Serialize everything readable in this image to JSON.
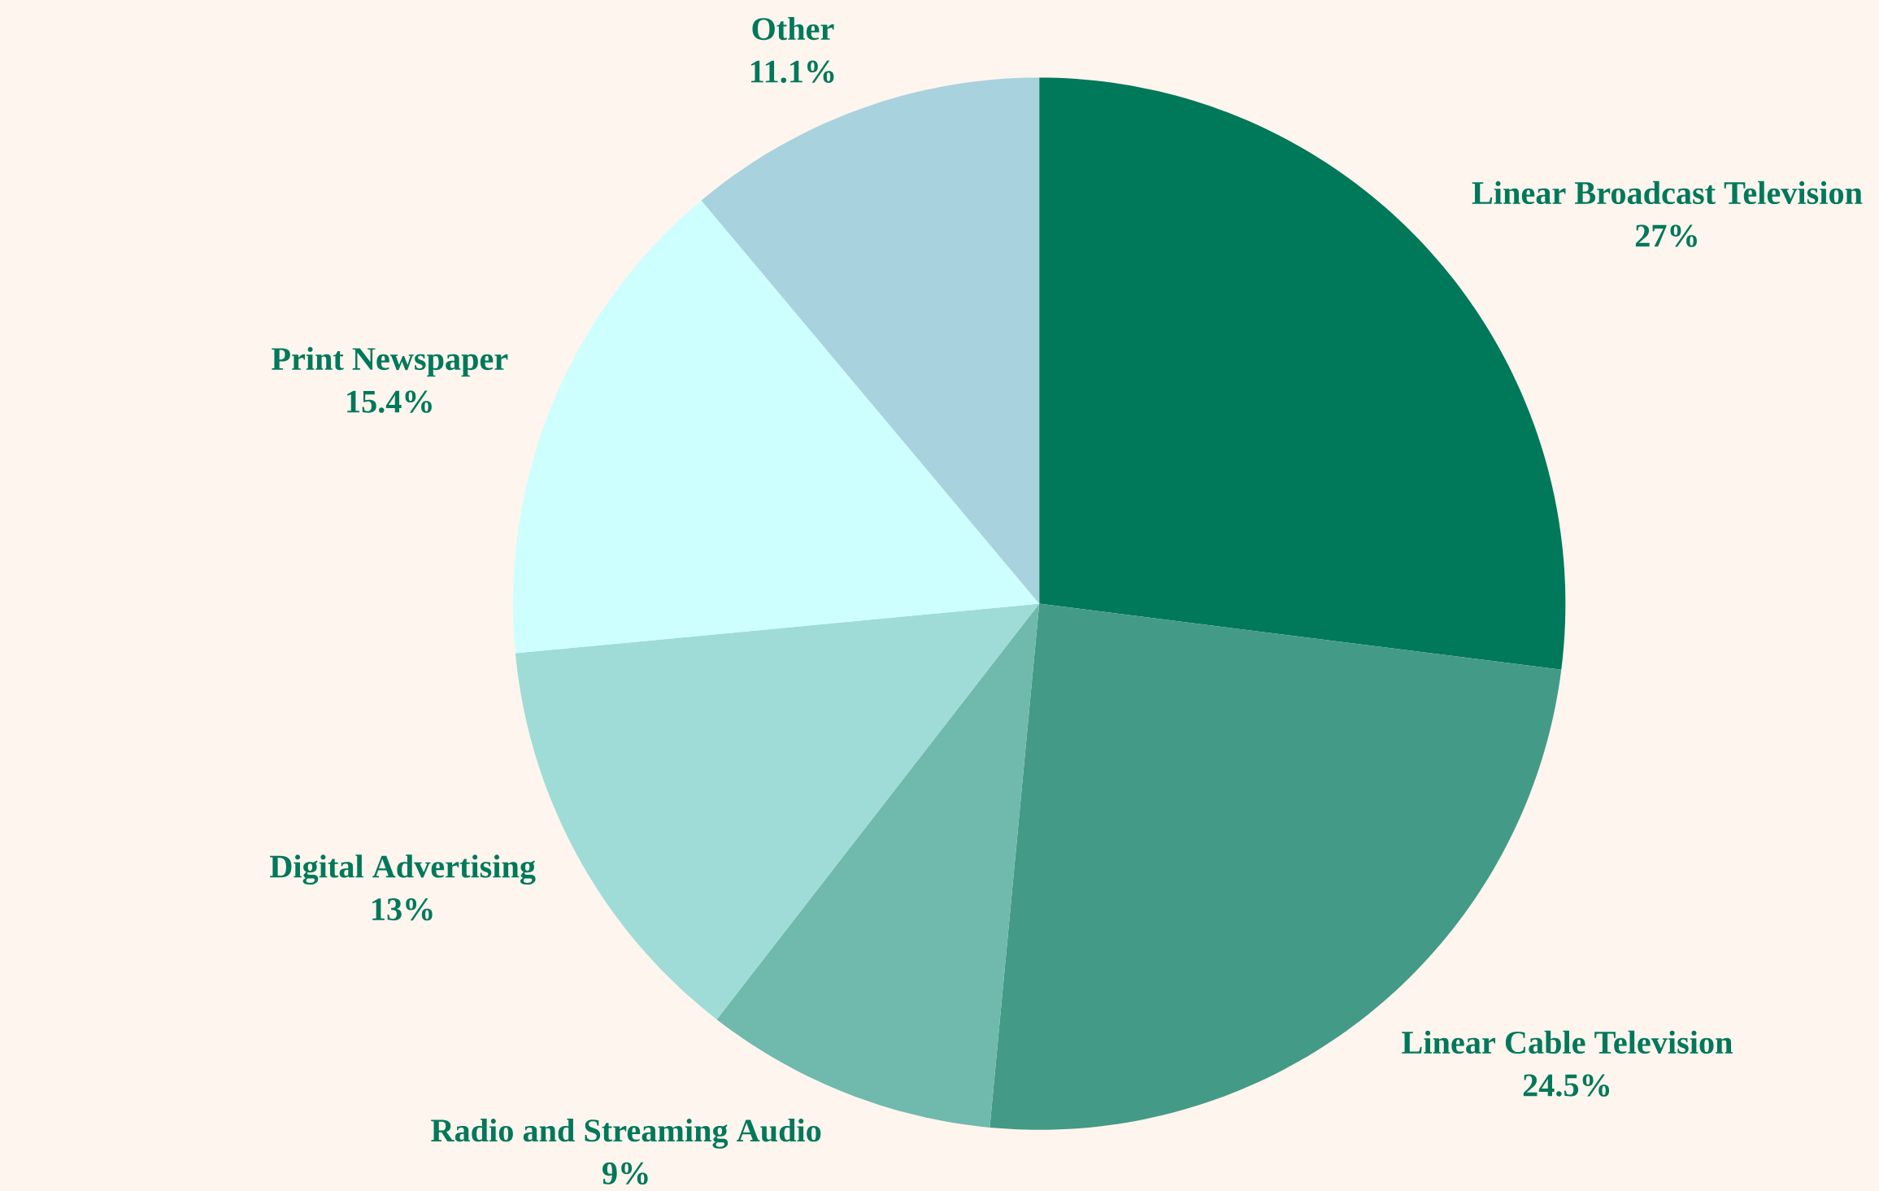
{
  "chart_data": {
    "type": "pie",
    "categories": [
      "Linear Broadcast Television",
      "Linear Cable Television",
      "Radio and Streaming Audio",
      "Digital Advertising",
      "Print Newspaper",
      "Other"
    ],
    "values": [
      27,
      24.5,
      9,
      13,
      15.4,
      11.1
    ],
    "value_labels": [
      "27%",
      "24.5%",
      "9%",
      "13%",
      "15.4%",
      "11.1%"
    ],
    "colors": [
      "#00785a",
      "#439a87",
      "#6fb9ad",
      "#9fdcd7",
      "#ccfffe",
      "#a8d2de"
    ]
  }
}
